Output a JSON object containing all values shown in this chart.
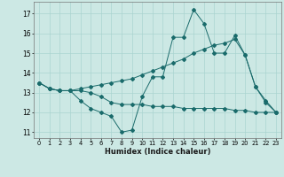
{
  "xlabel": "Humidex (Indice chaleur)",
  "bg_color": "#cce8e4",
  "grid_color": "#aad4d0",
  "line_color": "#1a6b6b",
  "series": [
    [
      13.5,
      13.2,
      13.1,
      13.1,
      12.6,
      12.2,
      12.0,
      11.8,
      11.0,
      11.1,
      12.8,
      13.8,
      13.8,
      15.8,
      15.8,
      17.2,
      16.5,
      15.0,
      15.0,
      15.9,
      14.9,
      13.3,
      12.6,
      12.0
    ],
    [
      13.5,
      13.2,
      13.1,
      13.1,
      13.1,
      13.0,
      12.8,
      12.5,
      12.4,
      12.4,
      12.4,
      12.3,
      12.3,
      12.3,
      12.2,
      12.2,
      12.2,
      12.2,
      12.2,
      12.1,
      12.1,
      12.0,
      12.0,
      12.0
    ],
    [
      13.5,
      13.2,
      13.1,
      13.1,
      13.2,
      13.3,
      13.4,
      13.5,
      13.6,
      13.7,
      13.9,
      14.1,
      14.3,
      14.5,
      14.7,
      15.0,
      15.2,
      15.4,
      15.5,
      15.7,
      14.9,
      13.3,
      12.5,
      12.0
    ]
  ],
  "xlim": [
    -0.5,
    23.5
  ],
  "ylim": [
    10.7,
    17.6
  ],
  "yticks": [
    11,
    12,
    13,
    14,
    15,
    16,
    17
  ],
  "xticks": [
    0,
    1,
    2,
    3,
    4,
    5,
    6,
    7,
    8,
    9,
    10,
    11,
    12,
    13,
    14,
    15,
    16,
    17,
    18,
    19,
    20,
    21,
    22,
    23
  ],
  "xtick_labels": [
    "0",
    "1",
    "2",
    "3",
    "4",
    "5",
    "6",
    "7",
    "8",
    "9",
    "10",
    "11",
    "12",
    "13",
    "14",
    "15",
    "16",
    "17",
    "18",
    "19",
    "20",
    "21",
    "22",
    "23"
  ],
  "xlabel_fontsize": 6.0,
  "ytick_fontsize": 5.5,
  "xtick_fontsize": 4.8
}
